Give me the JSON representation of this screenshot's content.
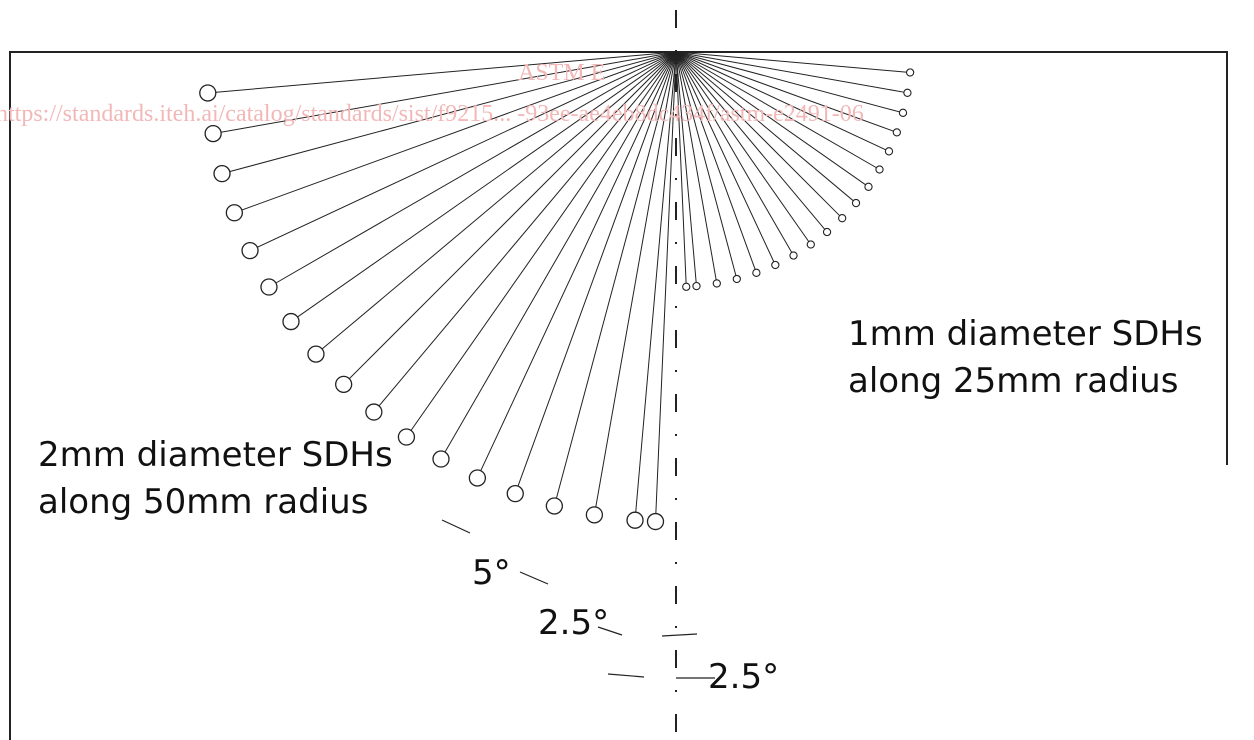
{
  "watermark": {
    "line1": "ASTM E",
    "line2": "https://standards.iteh.ai/catalog/standards/sist/f9215... -93ee-ae4eb8dc434f/astm-e2491-06"
  },
  "labels": {
    "small_holes_line1": "1mm diameter SDHs",
    "small_holes_line2": "along 25mm radius",
    "large_holes_line1": "2mm diameter SDHs",
    "large_holes_line2": "along 50mm radius",
    "angle_5": "5°",
    "angle_25_a": "2.5°",
    "angle_25_b": "2.5°"
  },
  "colors": {
    "line": "#222222",
    "watermark": "#f2b8b8"
  },
  "holes": {
    "large_angles_deg": [
      2.5,
      5,
      10,
      15,
      20,
      25,
      30,
      35,
      40,
      45,
      50,
      55,
      60,
      65,
      70,
      75,
      80,
      85
    ],
    "small_angles_deg": [
      2.5,
      5,
      10,
      15,
      20,
      25,
      30,
      35,
      40,
      45,
      50,
      55,
      60,
      65,
      70,
      75,
      80,
      85
    ]
  }
}
